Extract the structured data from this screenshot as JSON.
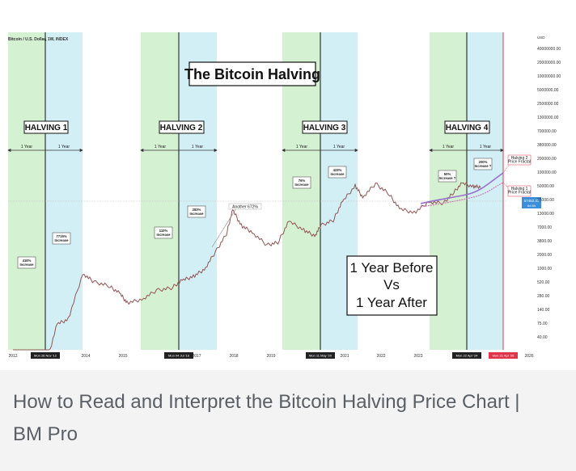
{
  "caption": "How to Read and Interpret the Bitcoin Halving Price Chart | BM Pro",
  "chart_data": {
    "type": "line",
    "symbol": "Bitcoin / U.S. Dollar, 1W, INDEX",
    "title": "The Bitcoin Halving",
    "y_scale": "log",
    "y_unit": "USD",
    "y_ticks": [
      "40000000.00",
      "20000000.00",
      "10000000.00",
      "5000000.00",
      "2500000.00",
      "1300000.00",
      "700000.00",
      "380000.00",
      "200000.00",
      "100000.00",
      "50000.00",
      "25000.00",
      "13000.00",
      "7000.00",
      "3800.00",
      "2000.00",
      "1000.00",
      "520.00",
      "280.00",
      "140.00",
      "75.00",
      "40.00"
    ],
    "x_ticks": [
      "2012",
      "2014",
      "2015",
      "2017",
      "2018",
      "2019",
      "2021",
      "2022",
      "2023",
      "2026"
    ],
    "x_markers": [
      "Mon 26 Nov '12",
      "Mon 04 Jul '16",
      "Mon 11 May '20",
      "Mon 22 Apr '24",
      "Mon 21 Apr '25"
    ],
    "halvings": [
      {
        "label": "HALVING 1",
        "before_label": "1 Year",
        "after_label": "1 Year",
        "before": "416% Increase",
        "after": "7715% Increase"
      },
      {
        "label": "HALVING 2",
        "before_label": "1 Year",
        "after_label": "1 Year",
        "before": "110% Increase",
        "after": "283% Increase"
      },
      {
        "label": "HALVING 3",
        "before_label": "1 Year",
        "after_label": "1 Year",
        "before": "76% Increase",
        "after": "423% Increase"
      },
      {
        "label": "HALVING 4",
        "before_label": "1 Year",
        "after_label": "1 Year",
        "before": "50% Increase ?",
        "after": "200% Increase ?"
      }
    ],
    "annotations": {
      "another": "Another 672%",
      "forecast_2": "Halving 2 Price Fractal",
      "forecast_1": "Halving 1 Price Fractal",
      "current_price": "57452.39",
      "current_sub": "6d 8h",
      "comparison_line1": "1 Year Before",
      "comparison_line2": "Vs",
      "comparison_line3": "1 Year After"
    },
    "series": [
      {
        "values": [
          [
            2012.0,
            5
          ],
          [
            2012.5,
            8
          ],
          [
            2012.9,
            12
          ],
          [
            2013.2,
            80
          ],
          [
            2013.5,
            100
          ],
          [
            2013.9,
            900
          ],
          [
            2014.2,
            600
          ],
          [
            2014.6,
            500
          ],
          [
            2014.9,
            350
          ],
          [
            2015.1,
            220
          ],
          [
            2015.5,
            260
          ],
          [
            2015.9,
            400
          ],
          [
            2016.3,
            450
          ],
          [
            2016.6,
            650
          ],
          [
            2016.9,
            780
          ],
          [
            2017.2,
            1100
          ],
          [
            2017.5,
            2500
          ],
          [
            2017.8,
            6000
          ],
          [
            2017.97,
            19000
          ],
          [
            2018.2,
            9000
          ],
          [
            2018.5,
            6500
          ],
          [
            2018.9,
            3500
          ],
          [
            2019.2,
            4000
          ],
          [
            2019.5,
            11000
          ],
          [
            2019.9,
            7200
          ],
          [
            2020.2,
            5500
          ],
          [
            2020.37,
            9000
          ],
          [
            2020.7,
            11500
          ],
          [
            2020.95,
            28000
          ],
          [
            2021.3,
            60000
          ],
          [
            2021.5,
            35000
          ],
          [
            2021.85,
            66000
          ],
          [
            2022.2,
            42000
          ],
          [
            2022.5,
            20000
          ],
          [
            2022.9,
            16500
          ],
          [
            2023.3,
            28000
          ],
          [
            2023.7,
            26000
          ],
          [
            2023.95,
            42000
          ],
          [
            2024.2,
            68000
          ],
          [
            2024.5,
            58000
          ],
          [
            2024.7,
            57452
          ]
        ]
      }
    ]
  }
}
